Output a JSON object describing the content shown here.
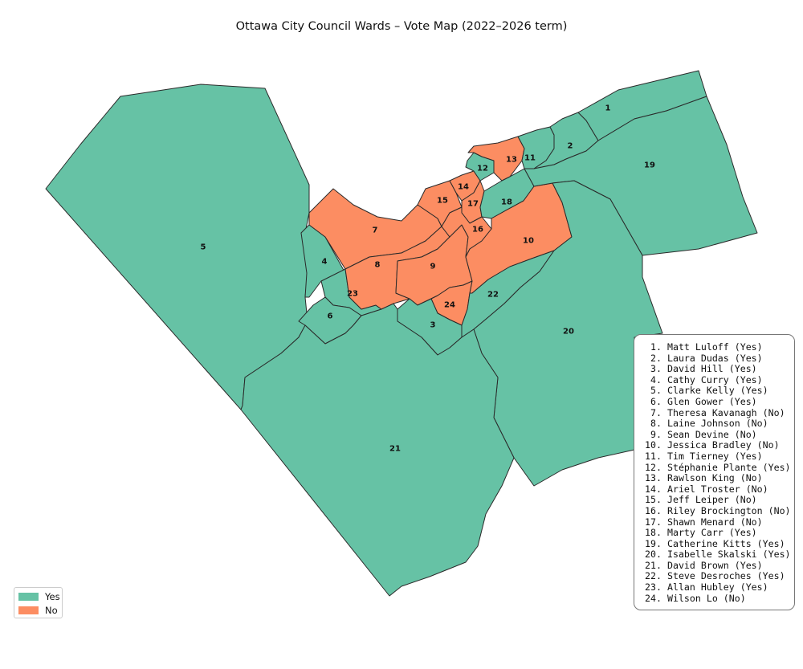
{
  "title": "Ottawa City Council Wards – Vote Map (2022–2026 term)",
  "colors": {
    "yes": "#66c2a5",
    "no": "#fc8d62"
  },
  "legend": [
    {
      "label": "Yes",
      "vote": "yes"
    },
    {
      "label": "No",
      "vote": "no"
    }
  ],
  "wards": [
    {
      "number": "1",
      "vote": "yes"
    },
    {
      "number": "2",
      "vote": "yes"
    },
    {
      "number": "3",
      "vote": "yes"
    },
    {
      "number": "4",
      "vote": "yes"
    },
    {
      "number": "5",
      "vote": "yes"
    },
    {
      "number": "6",
      "vote": "yes"
    },
    {
      "number": "7",
      "vote": "no"
    },
    {
      "number": "8",
      "vote": "no"
    },
    {
      "number": "9",
      "vote": "no"
    },
    {
      "number": "10",
      "vote": "no"
    },
    {
      "number": "11",
      "vote": "yes"
    },
    {
      "number": "12",
      "vote": "yes"
    },
    {
      "number": "13",
      "vote": "no"
    },
    {
      "number": "14",
      "vote": "no"
    },
    {
      "number": "15",
      "vote": "no"
    },
    {
      "number": "16",
      "vote": "no"
    },
    {
      "number": "17",
      "vote": "no"
    },
    {
      "number": "18",
      "vote": "yes"
    },
    {
      "number": "19",
      "vote": "yes"
    },
    {
      "number": "20",
      "vote": "yes"
    },
    {
      "number": "21",
      "vote": "yes"
    },
    {
      "number": "22",
      "vote": "yes"
    },
    {
      "number": "23",
      "vote": "yes"
    },
    {
      "number": "24",
      "vote": "no"
    }
  ],
  "councillors": [
    {
      "number": "1.",
      "text": "Matt Luloff (Yes)"
    },
    {
      "number": "2.",
      "text": "Laura Dudas (Yes)"
    },
    {
      "number": "3.",
      "text": "David Hill (Yes)"
    },
    {
      "number": "4.",
      "text": "Cathy Curry (Yes)"
    },
    {
      "number": "5.",
      "text": "Clarke Kelly (Yes)"
    },
    {
      "number": "6.",
      "text": "Glen Gower (Yes)"
    },
    {
      "number": "7.",
      "text": "Theresa Kavanagh (No)"
    },
    {
      "number": "8.",
      "text": "Laine Johnson (No)"
    },
    {
      "number": "9.",
      "text": "Sean Devine (No)"
    },
    {
      "number": "10.",
      "text": "Jessica Bradley (No)"
    },
    {
      "number": "11.",
      "text": "Tim Tierney (Yes)"
    },
    {
      "number": "12.",
      "text": "Stéphanie Plante (Yes)"
    },
    {
      "number": "13.",
      "text": "Rawlson King (No)"
    },
    {
      "number": "14.",
      "text": "Ariel Troster (No)"
    },
    {
      "number": "15.",
      "text": "Jeff Leiper (No)"
    },
    {
      "number": "16.",
      "text": "Riley Brockington (No)"
    },
    {
      "number": "17.",
      "text": "Shawn Menard (No)"
    },
    {
      "number": "18.",
      "text": "Marty Carr (Yes)"
    },
    {
      "number": "19.",
      "text": "Catherine Kitts (Yes)"
    },
    {
      "number": "20.",
      "text": "Isabelle Skalski (Yes)"
    },
    {
      "number": "21.",
      "text": "David Brown (Yes)"
    },
    {
      "number": "22.",
      "text": "Steve Desroches (Yes)"
    },
    {
      "number": "23.",
      "text": "Allan Hubley (Yes)"
    },
    {
      "number": "24.",
      "text": "Wilson Lo (No)"
    }
  ]
}
